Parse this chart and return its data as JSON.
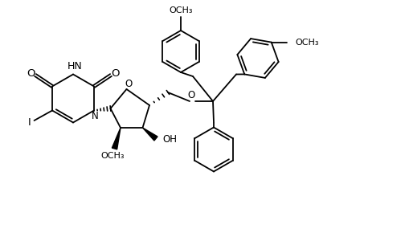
{
  "line_color": "#000000",
  "bg_color": "#ffffff",
  "lw": 1.3,
  "xlim": [
    0,
    10
  ],
  "ylim": [
    0,
    5.8
  ],
  "figsize": [
    5.1,
    2.9
  ],
  "dpi": 100
}
